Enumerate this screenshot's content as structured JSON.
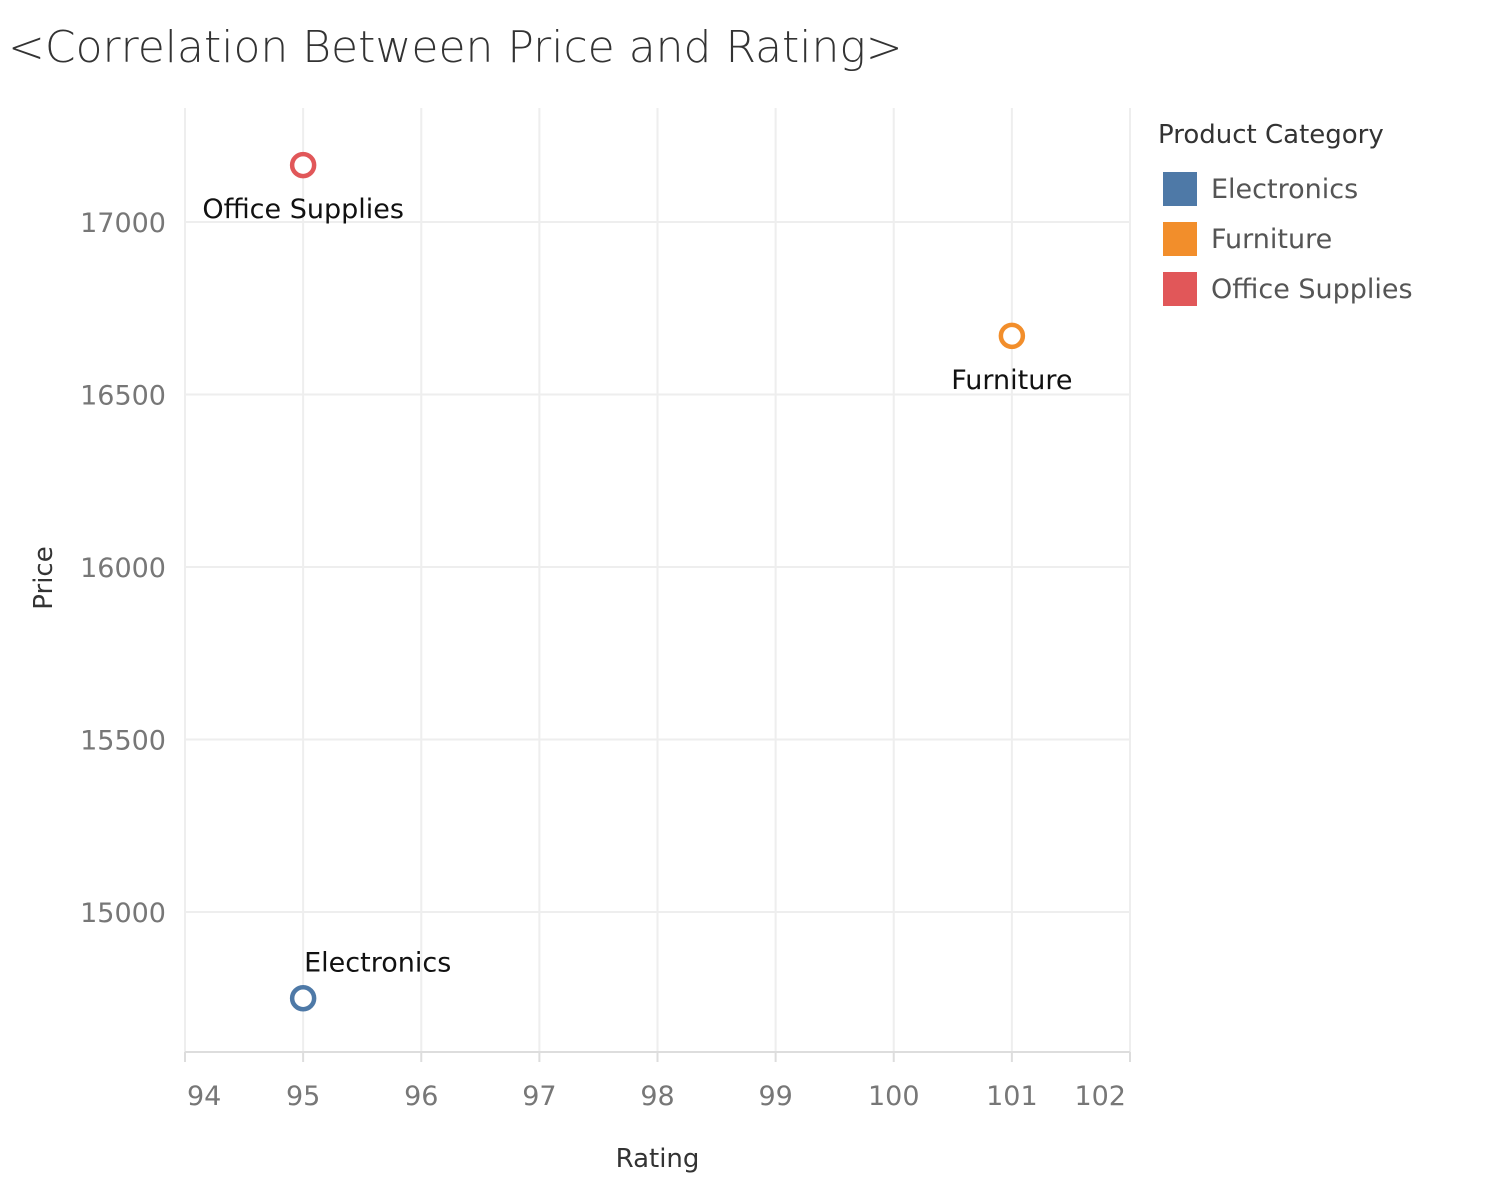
{
  "title": "<Correlation Between Price and Rating>",
  "colors": {
    "Electronics": "#4e79a7",
    "Furniture": "#f28e2b",
    "Office Supplies": "#e15759",
    "grid": "#eeeeee",
    "tick_text": "#777777",
    "axis_title": "#333333",
    "label_text": "#111111"
  },
  "legend": {
    "title": "Product Category",
    "placement": "right",
    "items": [
      {
        "label": "Electronics"
      },
      {
        "label": "Furniture"
      },
      {
        "label": "Office Supplies"
      }
    ]
  },
  "chart_data": {
    "type": "scatter",
    "title": "<Correlation Between Price and Rating>",
    "xlabel": "Rating",
    "ylabel": "Price",
    "xlim": [
      94,
      102
    ],
    "ylim": [
      14590,
      17340
    ],
    "xticks": [
      94,
      95,
      96,
      97,
      98,
      99,
      100,
      101,
      102
    ],
    "yticks": [
      15000,
      15500,
      16000,
      16500,
      17000
    ],
    "grid": true,
    "marker": "hollow-circle",
    "series": [
      {
        "name": "Electronics",
        "points": [
          {
            "x": 95,
            "y": 14750,
            "label": "Electronics"
          }
        ]
      },
      {
        "name": "Furniture",
        "points": [
          {
            "x": 101,
            "y": 16670,
            "label": "Furniture"
          }
        ]
      },
      {
        "name": "Office Supplies",
        "points": [
          {
            "x": 95,
            "y": 17165,
            "label": "Office Supplies"
          }
        ]
      }
    ]
  }
}
